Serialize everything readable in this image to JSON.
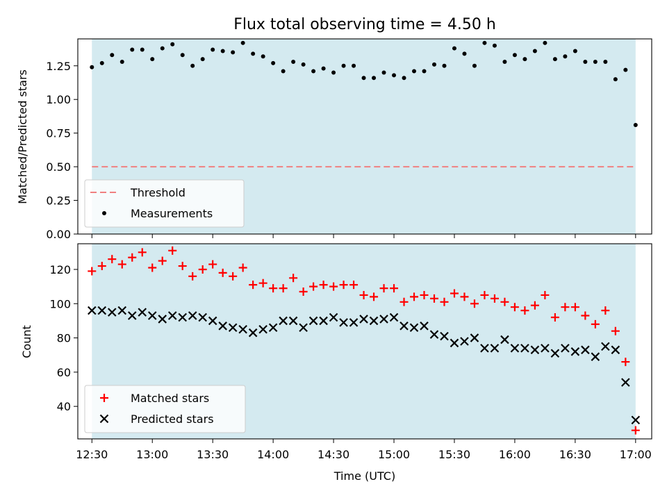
{
  "chart_data": [
    {
      "type": "scatter",
      "title": "Flux total observing time = 4.50 h",
      "ylabel": "Matched/Predicted stars",
      "xlabel": "",
      "xlim": [
        "12:23",
        "17:08"
      ],
      "ylim": [
        0,
        1.45
      ],
      "yticks": [
        "0.00",
        "0.25",
        "0.50",
        "0.75",
        "1.00",
        "1.25"
      ],
      "observing_window": [
        "12:30",
        "17:00"
      ],
      "threshold": 0.5,
      "legend": {
        "placement": "lower-left",
        "entries": [
          "Threshold",
          "Measurements"
        ]
      },
      "series": [
        {
          "name": "Measurements",
          "x": [
            "12:30",
            "12:35",
            "12:40",
            "12:45",
            "12:50",
            "12:55",
            "13:00",
            "13:05",
            "13:10",
            "13:15",
            "13:20",
            "13:25",
            "13:30",
            "13:35",
            "13:40",
            "13:45",
            "13:50",
            "13:55",
            "14:00",
            "14:05",
            "14:10",
            "14:15",
            "14:20",
            "14:25",
            "14:30",
            "14:35",
            "14:40",
            "14:45",
            "14:50",
            "14:55",
            "15:00",
            "15:05",
            "15:10",
            "15:15",
            "15:20",
            "15:25",
            "15:30",
            "15:35",
            "15:40",
            "15:45",
            "15:50",
            "15:55",
            "16:00",
            "16:05",
            "16:10",
            "16:15",
            "16:20",
            "16:25",
            "16:30",
            "16:35",
            "16:40",
            "16:45",
            "16:50",
            "16:55",
            "17:00"
          ],
          "values": [
            1.24,
            1.27,
            1.33,
            1.28,
            1.37,
            1.37,
            1.3,
            1.38,
            1.41,
            1.33,
            1.25,
            1.3,
            1.37,
            1.36,
            1.35,
            1.42,
            1.34,
            1.32,
            1.27,
            1.21,
            1.28,
            1.26,
            1.21,
            1.23,
            1.2,
            1.25,
            1.25,
            1.16,
            1.16,
            1.2,
            1.18,
            1.16,
            1.21,
            1.21,
            1.26,
            1.25,
            1.38,
            1.34,
            1.25,
            1.42,
            1.4,
            1.28,
            1.33,
            1.3,
            1.36,
            1.42,
            1.3,
            1.32,
            1.36,
            1.28,
            1.28,
            1.28,
            1.15,
            1.22,
            0.81
          ],
          "color": "#000000"
        },
        {
          "name": "Threshold",
          "values": [
            0.5,
            0.5
          ],
          "x": [
            "12:30",
            "17:00"
          ],
          "color": "#f08080"
        }
      ]
    },
    {
      "type": "scatter",
      "title": "",
      "ylabel": "Count",
      "xlabel": "Time (UTC)",
      "xlim": [
        "12:23",
        "17:08"
      ],
      "ylim": [
        21,
        135
      ],
      "yticks": [
        "40",
        "60",
        "80",
        "100",
        "120"
      ],
      "xticks": [
        "12:30",
        "13:00",
        "13:30",
        "14:00",
        "14:30",
        "15:00",
        "15:30",
        "16:00",
        "16:30",
        "17:00"
      ],
      "observing_window": [
        "12:30",
        "17:00"
      ],
      "legend": {
        "placement": "lower-left",
        "entries": [
          "Matched stars",
          "Predicted stars"
        ]
      },
      "series": [
        {
          "name": "Matched stars",
          "x": [
            "12:30",
            "12:35",
            "12:40",
            "12:45",
            "12:50",
            "12:55",
            "13:00",
            "13:05",
            "13:10",
            "13:15",
            "13:20",
            "13:25",
            "13:30",
            "13:35",
            "13:40",
            "13:45",
            "13:50",
            "13:55",
            "14:00",
            "14:05",
            "14:10",
            "14:15",
            "14:20",
            "14:25",
            "14:30",
            "14:35",
            "14:40",
            "14:45",
            "14:50",
            "14:55",
            "15:00",
            "15:05",
            "15:10",
            "15:15",
            "15:20",
            "15:25",
            "15:30",
            "15:35",
            "15:40",
            "15:45",
            "15:50",
            "15:55",
            "16:00",
            "16:05",
            "16:10",
            "16:15",
            "16:20",
            "16:25",
            "16:30",
            "16:35",
            "16:40",
            "16:45",
            "16:50",
            "16:55",
            "17:00"
          ],
          "values": [
            119,
            122,
            126,
            123,
            127,
            130,
            121,
            125,
            131,
            122,
            116,
            120,
            123,
            118,
            116,
            121,
            111,
            112,
            109,
            109,
            115,
            107,
            110,
            111,
            110,
            111,
            111,
            105,
            104,
            109,
            109,
            101,
            104,
            105,
            103,
            101,
            106,
            104,
            100,
            105,
            103,
            101,
            98,
            96,
            99,
            105,
            92,
            98,
            98,
            93,
            88,
            96,
            84,
            66,
            26
          ],
          "color": "#ff0000"
        },
        {
          "name": "Predicted stars",
          "x": [
            "12:30",
            "12:35",
            "12:40",
            "12:45",
            "12:50",
            "12:55",
            "13:00",
            "13:05",
            "13:10",
            "13:15",
            "13:20",
            "13:25",
            "13:30",
            "13:35",
            "13:40",
            "13:45",
            "13:50",
            "13:55",
            "14:00",
            "14:05",
            "14:10",
            "14:15",
            "14:20",
            "14:25",
            "14:30",
            "14:35",
            "14:40",
            "14:45",
            "14:50",
            "14:55",
            "15:00",
            "15:05",
            "15:10",
            "15:15",
            "15:20",
            "15:25",
            "15:30",
            "15:35",
            "15:40",
            "15:45",
            "15:50",
            "15:55",
            "16:00",
            "16:05",
            "16:10",
            "16:15",
            "16:20",
            "16:25",
            "16:30",
            "16:35",
            "16:40",
            "16:45",
            "16:50",
            "16:55",
            "17:00"
          ],
          "values": [
            96,
            96,
            95,
            96,
            93,
            95,
            93,
            91,
            93,
            92,
            93,
            92,
            90,
            87,
            86,
            85,
            83,
            85,
            86,
            90,
            90,
            86,
            90,
            90,
            92,
            89,
            89,
            91,
            90,
            91,
            92,
            87,
            86,
            87,
            82,
            81,
            77,
            78,
            80,
            74,
            74,
            79,
            74,
            74,
            73,
            74,
            71,
            74,
            72,
            73,
            69,
            75,
            73,
            54,
            32
          ],
          "color": "#000000"
        }
      ]
    }
  ]
}
